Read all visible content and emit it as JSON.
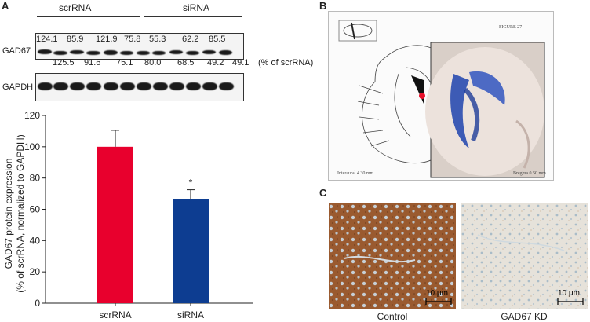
{
  "panels": {
    "a": "A",
    "b": "B",
    "c": "C"
  },
  "blot": {
    "groups": [
      "scrRNA",
      "siRNA"
    ],
    "top_values": [
      "124.1",
      "85.9",
      "121.9",
      "75.8",
      "55.3",
      "62.2",
      "85.5"
    ],
    "bottom_values": [
      "125.5",
      "91.6",
      "75.1",
      "80.0",
      "68.5",
      "49.2",
      "49.1"
    ],
    "unit_note": "(% of scrRNA)",
    "gad67_label": "GAD67",
    "gapdh_label": "GAPDH"
  },
  "chart_data": {
    "type": "bar",
    "categories": [
      "scrRNA",
      "siRNA"
    ],
    "values": [
      100,
      66.5
    ],
    "errors": [
      10.5,
      6
    ],
    "colors": [
      "#e8002d",
      "#0d3d91"
    ],
    "ylabel_line1": "GAD67 protein expression",
    "ylabel_line2": "(% of scrRNA, normalized to GAPDH)",
    "ylim": [
      0,
      120
    ],
    "yticks": [
      0,
      20,
      40,
      60,
      80,
      100,
      120
    ],
    "significance": "*"
  },
  "atlas": {
    "figure_label": "FIGURE 27",
    "interaural": "Interaural 4.30 mm",
    "bregma": "Bregma 0.50 mm"
  },
  "histology": {
    "control_label": "Control",
    "kd_label": "GAD67 KD",
    "scale_left": "10 μm",
    "scale_right": "10 μm"
  }
}
